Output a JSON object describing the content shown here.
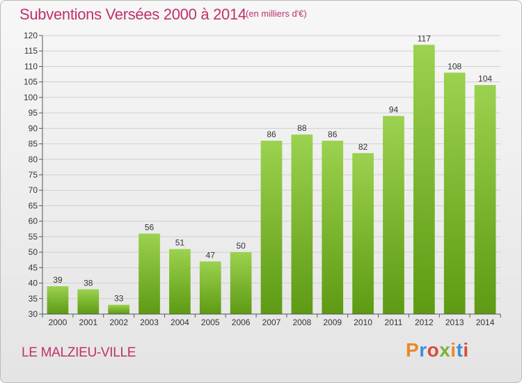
{
  "header": {
    "title": "Subventions Versées 2000 à 2014",
    "subtitle": "(en milliers d'€)"
  },
  "footer": {
    "commune": "LE MALZIEU-VILLE",
    "logo_text": "Proxiti",
    "logo_colors": [
      "#e8892a",
      "#3d8fd6",
      "#d94b3a",
      "#7ab23a",
      "#e8892a",
      "#3d8fd6",
      "#d94b3a"
    ]
  },
  "chart_data": {
    "type": "bar",
    "title": "Subventions Versées 2000 à 2014",
    "subtitle": "(en milliers d'€)",
    "categories": [
      "2000",
      "2001",
      "2002",
      "2003",
      "2004",
      "2005",
      "2006",
      "2007",
      "2008",
      "2009",
      "2010",
      "2011",
      "2012",
      "2013",
      "2014"
    ],
    "values": [
      39,
      38,
      33,
      56,
      51,
      47,
      50,
      86,
      88,
      86,
      82,
      94,
      117,
      108,
      104
    ],
    "ylim": [
      30,
      120
    ],
    "ytick_step": 5,
    "grid": true,
    "bar_color_top": "#9bd24f",
    "bar_color_bottom": "#5e9a13",
    "data_labels": true
  }
}
